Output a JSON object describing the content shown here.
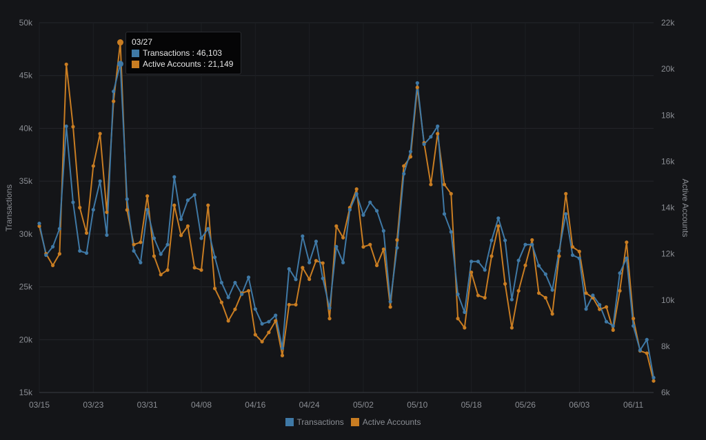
{
  "chart_data": {
    "type": "line",
    "x": [
      "03/15",
      "03/16",
      "03/17",
      "03/18",
      "03/19",
      "03/20",
      "03/21",
      "03/22",
      "03/23",
      "03/24",
      "03/25",
      "03/26",
      "03/27",
      "03/28",
      "03/29",
      "03/30",
      "03/31",
      "04/01",
      "04/02",
      "04/03",
      "04/04",
      "04/05",
      "04/06",
      "04/07",
      "04/08",
      "04/09",
      "04/10",
      "04/11",
      "04/12",
      "04/13",
      "04/14",
      "04/15",
      "04/16",
      "04/17",
      "04/18",
      "04/19",
      "04/20",
      "04/21",
      "04/22",
      "04/23",
      "04/24",
      "04/25",
      "04/26",
      "04/27",
      "04/28",
      "04/29",
      "04/30",
      "05/01",
      "05/02",
      "05/03",
      "05/04",
      "05/05",
      "05/06",
      "05/07",
      "05/08",
      "05/09",
      "05/10",
      "05/11",
      "05/12",
      "05/13",
      "05/14",
      "05/15",
      "05/16",
      "05/17",
      "05/18",
      "05/19",
      "05/20",
      "05/21",
      "05/22",
      "05/23",
      "05/24",
      "05/25",
      "05/26",
      "05/27",
      "05/28",
      "05/29",
      "05/30",
      "05/31",
      "06/01",
      "06/02",
      "06/03",
      "06/04",
      "06/05",
      "06/06",
      "06/07",
      "06/08",
      "06/09",
      "06/10",
      "06/11",
      "06/12",
      "06/13",
      "06/14"
    ],
    "x_ticks": [
      "03/15",
      "03/23",
      "03/31",
      "04/08",
      "04/16",
      "04/24",
      "05/02",
      "05/10",
      "05/18",
      "05/26",
      "06/03",
      "06/11"
    ],
    "series": [
      {
        "name": "Transactions",
        "axis": "left",
        "color": "#3f79a6",
        "values": [
          31000,
          28000,
          28800,
          30500,
          40200,
          33000,
          28400,
          28200,
          32300,
          35000,
          29900,
          43500,
          46103,
          33300,
          28400,
          27300,
          32300,
          29600,
          28100,
          29000,
          35400,
          31400,
          33200,
          33700,
          29600,
          30500,
          27800,
          25400,
          24000,
          25400,
          24300,
          25900,
          22900,
          21500,
          21700,
          22300,
          19200,
          26700,
          25700,
          29800,
          27300,
          29300,
          25800,
          23000,
          28800,
          27300,
          32300,
          33800,
          31800,
          33000,
          32200,
          30300,
          23600,
          28700,
          35700,
          37800,
          44300,
          38500,
          39200,
          40200,
          31900,
          30200,
          24300,
          22600,
          27400,
          27400,
          26600,
          29400,
          31500,
          29400,
          23800,
          27500,
          29000,
          29000,
          27000,
          26200,
          24700,
          28400,
          31900,
          28000,
          27700,
          22900,
          24200,
          23300,
          21700,
          21300,
          26300,
          27700,
          21300,
          19000,
          20000,
          16400
        ]
      },
      {
        "name": "Active Accounts",
        "axis": "right",
        "color": "#c97d22",
        "values": [
          13200,
          12000,
          11500,
          12000,
          20200,
          17500,
          14000,
          12900,
          15800,
          17200,
          13800,
          18600,
          21149,
          13900,
          12400,
          12500,
          14500,
          11900,
          11100,
          11300,
          14100,
          12800,
          13200,
          11400,
          11300,
          14100,
          10500,
          9900,
          9100,
          9600,
          10300,
          10400,
          8500,
          8200,
          8600,
          9100,
          7600,
          9800,
          9800,
          11400,
          10900,
          11700,
          11600,
          9200,
          13200,
          12700,
          14000,
          14800,
          12300,
          12400,
          11500,
          12200,
          9700,
          12600,
          15800,
          16200,
          19200,
          16800,
          15000,
          17200,
          15000,
          14600,
          9200,
          8800,
          11200,
          10200,
          10100,
          11900,
          13200,
          10700,
          8800,
          10400,
          11500,
          12600,
          10300,
          10100,
          9400,
          11900,
          14600,
          12300,
          12100,
          10300,
          10100,
          9600,
          9700,
          8700,
          10400,
          12500,
          9200,
          7800,
          7700,
          6500
        ]
      }
    ],
    "y_left": {
      "label": "Transactions",
      "min": 15000,
      "max": 50000,
      "ticks": [
        "15k",
        "20k",
        "25k",
        "30k",
        "35k",
        "40k",
        "45k",
        "50k"
      ],
      "tick_values": [
        15000,
        20000,
        25000,
        30000,
        35000,
        40000,
        45000,
        50000
      ]
    },
    "y_right": {
      "label": "Active Accounts",
      "min": 6000,
      "max": 22000,
      "ticks": [
        "6k",
        "8k",
        "10k",
        "12k",
        "14k",
        "16k",
        "18k",
        "20k",
        "22k"
      ],
      "tick_values": [
        6000,
        8000,
        10000,
        12000,
        14000,
        16000,
        18000,
        20000,
        22000
      ]
    },
    "grid": true,
    "legend_position": "bottom-center"
  },
  "legend": [
    {
      "label": "Transactions",
      "color": "#3f79a6"
    },
    {
      "label": "Active Accounts",
      "color": "#c97d22"
    }
  ],
  "tooltip": {
    "date": "03/27",
    "index": 12,
    "rows": [
      {
        "label": "Transactions : 46,103",
        "color": "#3f79a6"
      },
      {
        "label": "Active Accounts : 21,149",
        "color": "#c97d22"
      }
    ]
  }
}
